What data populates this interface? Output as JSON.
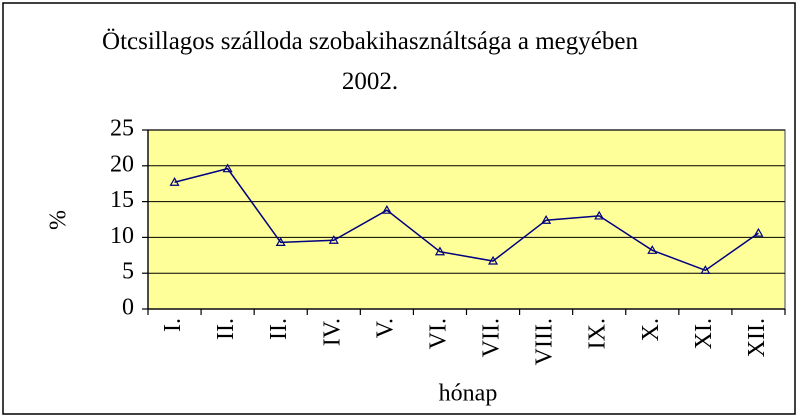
{
  "chart_data": {
    "type": "line",
    "title": "Ötcsillagos szálloda szobakihasználtsága a megyében 2002.",
    "x_label": "hónap",
    "y_label": "%",
    "categories": [
      "I.",
      "II.",
      "II.",
      "IV.",
      "V.",
      "VI.",
      "VII.",
      "VIII.",
      "IX.",
      "X.",
      "XI.",
      "XII."
    ],
    "series": [
      {
        "name": "%",
        "color": "#000080",
        "values": [
          17.7,
          19.6,
          9.3,
          9.6,
          13.8,
          8.0,
          6.7,
          12.4,
          13.0,
          8.2,
          5.4,
          10.6
        ]
      }
    ],
    "ylim": [
      0,
      25
    ],
    "yticks": [
      0,
      5,
      10,
      15,
      20,
      25
    ],
    "grid": true,
    "legend": false
  }
}
